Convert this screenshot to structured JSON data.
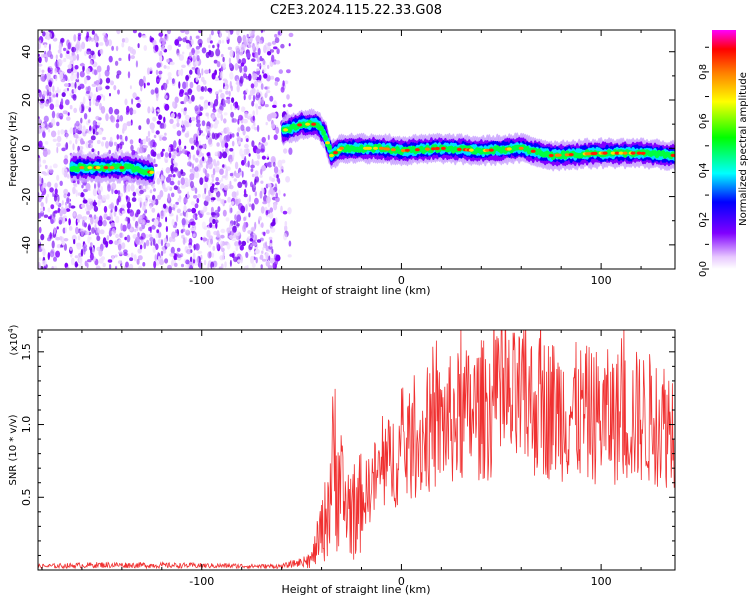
{
  "title": "C2E3.2024.115.22.33.G08",
  "chart_data": [
    {
      "type": "heatmap",
      "xlabel": "Height of straight line (km)",
      "ylabel": "Frequency (Hz)",
      "xlim": [
        -182,
        137
      ],
      "ylim": [
        -50,
        49
      ],
      "x_ticks": [
        -100,
        0,
        100
      ],
      "y_ticks": [
        -40,
        -20,
        0,
        20,
        40
      ],
      "colorbar": {
        "label": "Normalized spectral amplitude",
        "range": [
          0,
          0.97
        ],
        "ticks": [
          "0.0",
          "0.2",
          "0.4",
          "0.6",
          "0.8"
        ]
      },
      "ridge": [
        {
          "x": -165,
          "y": -8
        },
        {
          "x": -150,
          "y": -8
        },
        {
          "x": -135,
          "y": -8
        },
        {
          "x": -125,
          "y": -10
        },
        {
          "x": -60,
          "y": 7
        },
        {
          "x": -50,
          "y": 10
        },
        {
          "x": -42,
          "y": 10
        },
        {
          "x": -38,
          "y": 5
        },
        {
          "x": -35,
          "y": -3
        },
        {
          "x": -30,
          "y": 0
        },
        {
          "x": -10,
          "y": 0
        },
        {
          "x": 0,
          "y": -1
        },
        {
          "x": 20,
          "y": 0
        },
        {
          "x": 40,
          "y": -1
        },
        {
          "x": 60,
          "y": 0
        },
        {
          "x": 75,
          "y": -3
        },
        {
          "x": 100,
          "y": -2
        },
        {
          "x": 120,
          "y": -2
        },
        {
          "x": 137,
          "y": -3
        }
      ],
      "noise_region_x": [
        -182,
        -55
      ]
    },
    {
      "type": "line",
      "xlabel": "Height of straight line (km)",
      "ylabel": "SNR (10 * v/v)",
      "y_multiplier": "(x10",
      "y_multiplier_exp": "4",
      "xlim": [
        -182,
        137
      ],
      "ylim": [
        0,
        16500
      ],
      "x_ticks": [
        -100,
        0,
        100
      ],
      "y_ticks": [
        {
          "value": 5000,
          "label": "0.5"
        },
        {
          "value": 10000,
          "label": "1.0"
        },
        {
          "value": 15000,
          "label": "1.5"
        }
      ],
      "color": "#f03030",
      "envelope": [
        {
          "x": -182,
          "y": 250
        },
        {
          "x": -150,
          "y": 350
        },
        {
          "x": -100,
          "y": 300
        },
        {
          "x": -60,
          "y": 250
        },
        {
          "x": -45,
          "y": 700
        },
        {
          "x": -38,
          "y": 3500
        },
        {
          "x": -33,
          "y": 8000
        },
        {
          "x": -29,
          "y": 4500
        },
        {
          "x": -22,
          "y": 4000
        },
        {
          "x": -15,
          "y": 6000
        },
        {
          "x": -5,
          "y": 7500
        },
        {
          "x": 10,
          "y": 9000
        },
        {
          "x": 20,
          "y": 10000
        },
        {
          "x": 40,
          "y": 11000
        },
        {
          "x": 60,
          "y": 11500
        },
        {
          "x": 80,
          "y": 11000
        },
        {
          "x": 100,
          "y": 10500
        },
        {
          "x": 120,
          "y": 10500
        },
        {
          "x": 137,
          "y": 10000
        }
      ]
    }
  ]
}
